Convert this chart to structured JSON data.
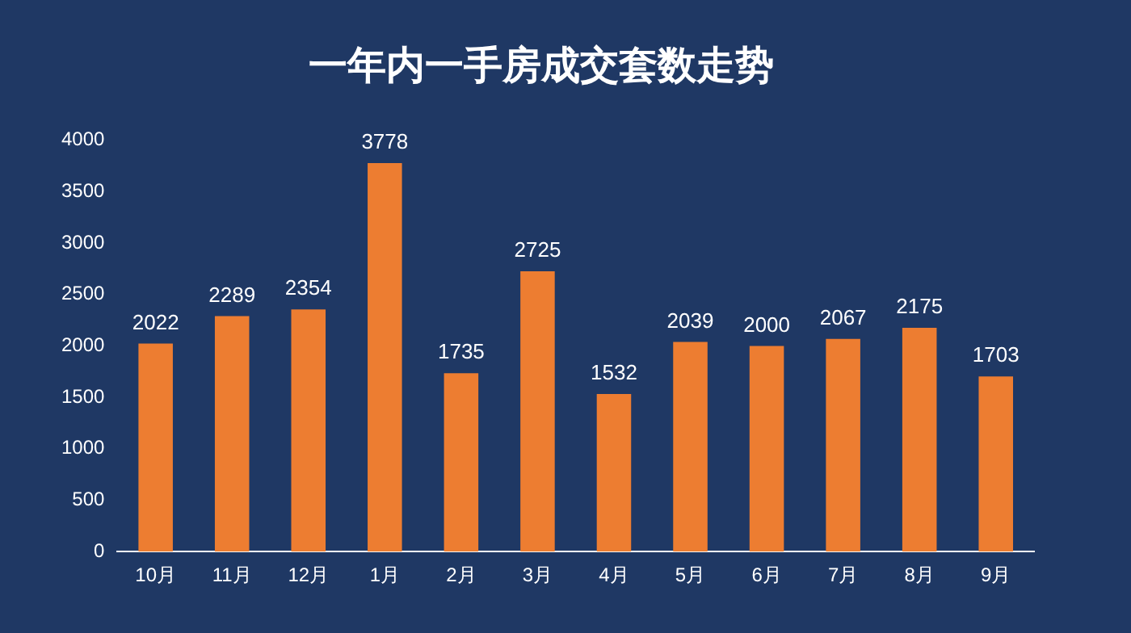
{
  "chart_data": {
    "type": "bar",
    "title": "一年内一手房成交套数走势",
    "categories": [
      "10月",
      "11月",
      "12月",
      "1月",
      "2月",
      "3月",
      "4月",
      "5月",
      "6月",
      "7月",
      "8月",
      "9月"
    ],
    "values": [
      2022,
      2289,
      2354,
      3778,
      1735,
      2725,
      1532,
      2039,
      2000,
      2067,
      2175,
      1703
    ],
    "color": "#ed7d31",
    "data_labels": true,
    "ylim": [
      0,
      4000
    ],
    "yticks": [
      0,
      500,
      1000,
      1500,
      2000,
      2500,
      3000,
      3500,
      4000
    ],
    "grid": false,
    "legend": false
  }
}
